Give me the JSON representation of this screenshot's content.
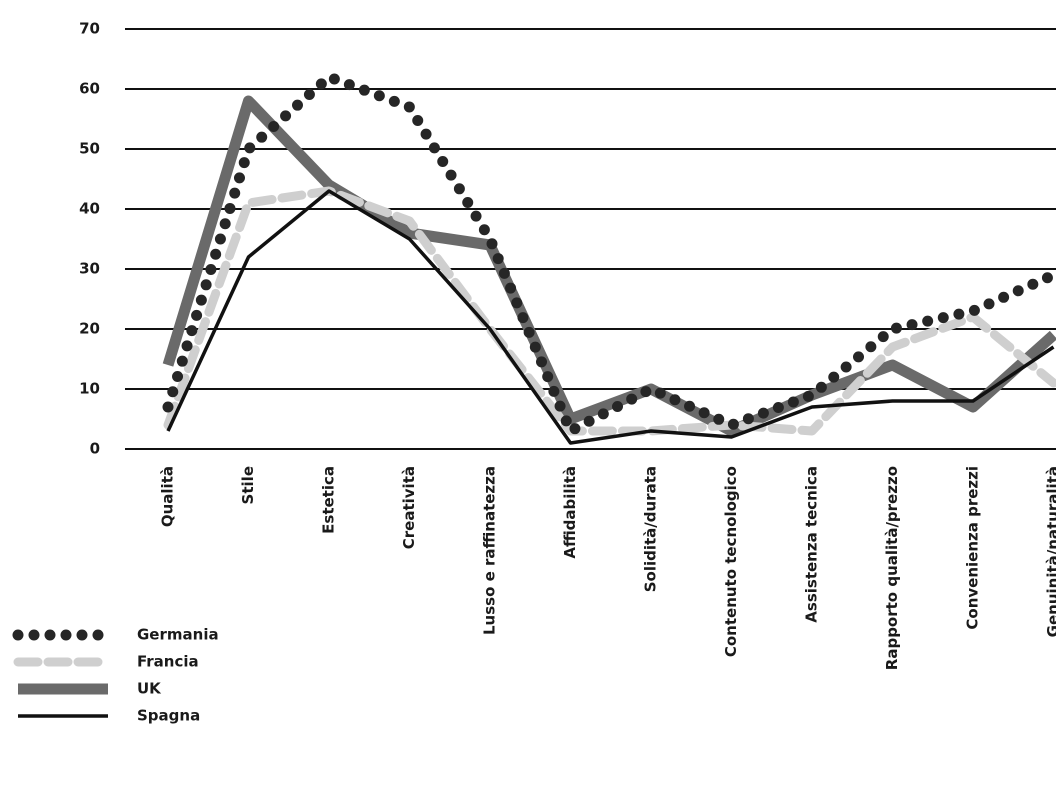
{
  "chart_data": {
    "type": "line",
    "categories": [
      "Qualità",
      "Stile",
      "Estetica",
      "Creatività",
      "Lusso e raffinatezza",
      "Affidabilità",
      "Solidità/durata",
      "Contenuto tecnologico",
      "Assistenza tecnica",
      "Rapporto qualità/prezzo",
      "Convenienza prezzi",
      "Genuinità/naturalità"
    ],
    "series": [
      {
        "name": "Germania",
        "color": "#262626",
        "line_style": "dotted",
        "values": [
          7,
          50,
          62,
          57,
          35,
          3,
          10,
          4,
          9,
          20,
          23,
          29
        ]
      },
      {
        "name": "Francia",
        "color": "#cfcfcf",
        "line_style": "dashed",
        "values": [
          4,
          41,
          43,
          38,
          20,
          3,
          3,
          4,
          3,
          17,
          22,
          11
        ]
      },
      {
        "name": "UK",
        "color": "#6a6a6a",
        "line_style": "thick",
        "values": [
          14,
          58,
          44,
          36,
          34,
          5,
          10,
          3,
          9,
          14,
          7,
          19
        ]
      },
      {
        "name": "Spagna",
        "color": "#111111",
        "line_style": "solid",
        "values": [
          3,
          32,
          43,
          35,
          20,
          1,
          3,
          2,
          7,
          8,
          8,
          17
        ]
      }
    ],
    "ylim": [
      0,
      70
    ],
    "yticks": [
      0,
      10,
      20,
      30,
      40,
      50,
      60,
      70
    ],
    "grid": true,
    "legend": "bottom-left"
  }
}
